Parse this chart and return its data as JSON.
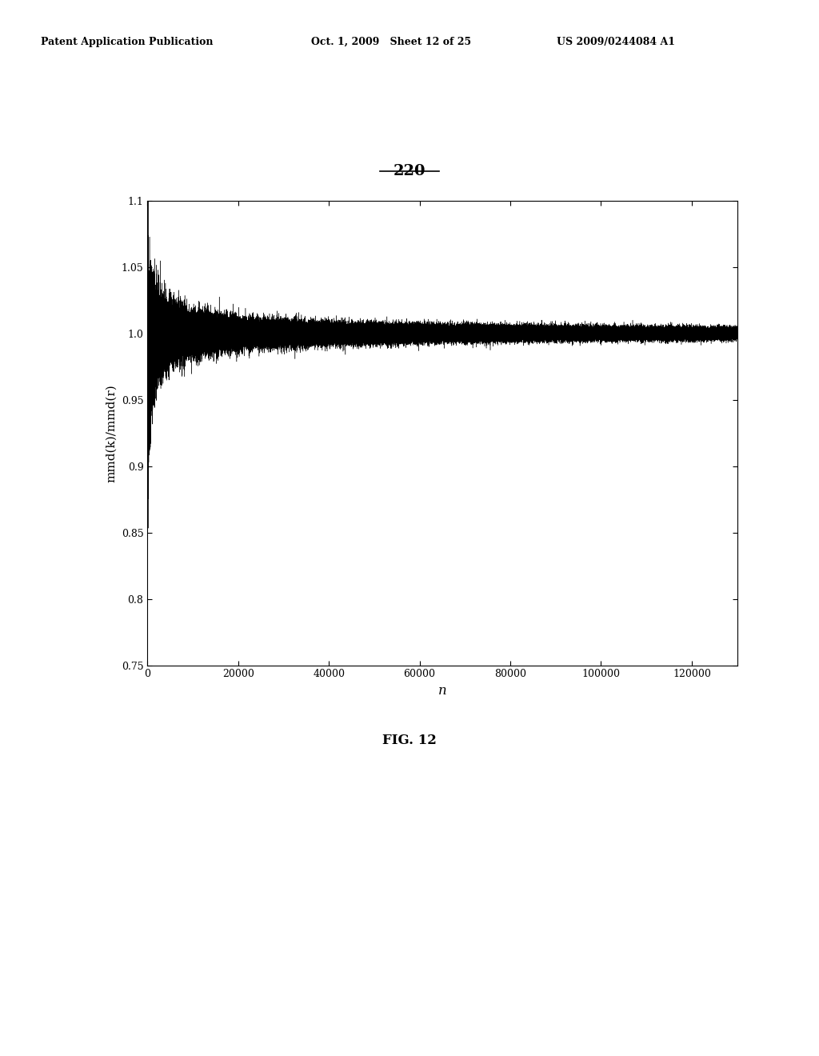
{
  "figure_label": "220",
  "fig_caption": "FIG. 12",
  "header_left": "Patent Application Publication",
  "header_mid": "Oct. 1, 2009   Sheet 12 of 25",
  "header_right": "US 2009/0244084 A1",
  "xlabel": "n",
  "ylabel": "mmd(k)/mmd(r)",
  "xlim": [
    0,
    130000
  ],
  "ylim": [
    0.75,
    1.1
  ],
  "xticks": [
    0,
    20000,
    40000,
    60000,
    80000,
    100000,
    120000
  ],
  "yticks": [
    0.75,
    0.8,
    0.85,
    0.9,
    0.95,
    1.0,
    1.05,
    1.1
  ],
  "line_color": "#000000",
  "bg_color": "#ffffff",
  "n_points": 130000,
  "noise_seed": 42
}
